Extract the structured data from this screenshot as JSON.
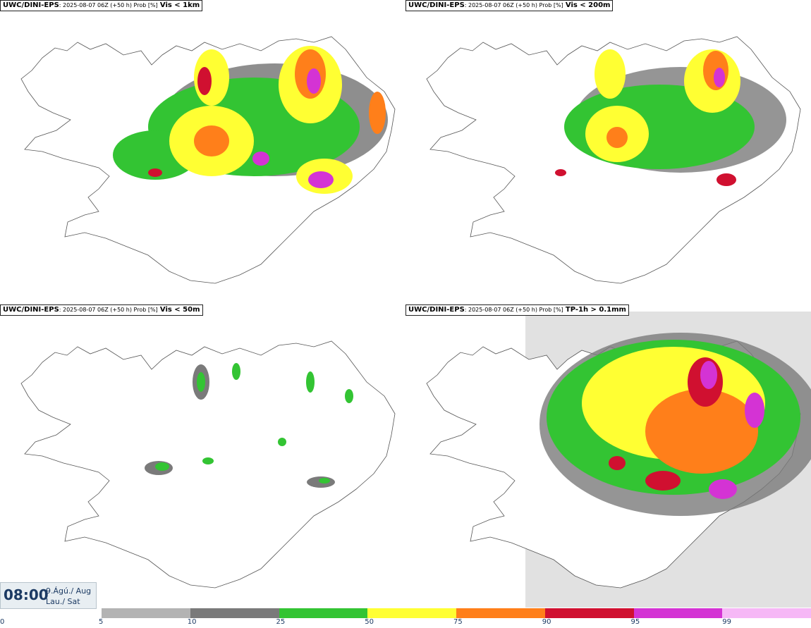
{
  "panels": [
    {
      "model": "UWC/DINI-EPS",
      "meta": ": 2025-08-07 06Z (+50 h) Prob [%]",
      "variable": "Vis < 1km"
    },
    {
      "model": "UWC/DINI-EPS",
      "meta": ": 2025-08-07 06Z (+50 h) Prob [%]",
      "variable": "Vis < 200m"
    },
    {
      "model": "UWC/DINI-EPS",
      "meta": ": 2025-08-07 06Z (+50 h) Prob [%]",
      "variable": "Vis < 50m"
    },
    {
      "model": "UWC/DINI-EPS",
      "meta": ": 2025-08-07 06Z (+50 h) Prob [%]",
      "variable": "TP-1h > 0.1mm"
    }
  ],
  "time": {
    "clock": "08:00",
    "date_line1": "9.Ágú./ Aug",
    "date_line2": "Lau./ Sat"
  },
  "colorbar": {
    "ticks": [
      "0",
      "5",
      "10",
      "25",
      "50",
      "75",
      "90",
      "95",
      "99"
    ],
    "colors": [
      "#b3b3b3",
      "#7a7a7a",
      "#33c433",
      "#ffff33",
      "#ff7f1a",
      "#d01030",
      "#d433d4",
      "#f6b8f6"
    ]
  }
}
